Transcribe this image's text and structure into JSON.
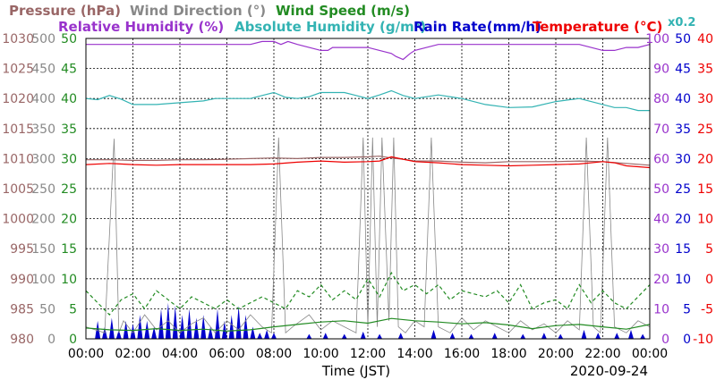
{
  "header": {
    "row1": [
      {
        "text": "Pressure (hPa)",
        "color": "#996666"
      },
      {
        "text": "Wind Direction (°)",
        "color": "#888888"
      },
      {
        "text": "Wind Speed (m/s)",
        "color": "#228B22"
      }
    ],
    "row2": [
      {
        "text": "Relative Humidity (%)",
        "color": "#9933CC"
      },
      {
        "text": "Absolute Humidity (g/m³)",
        "color": "#33B3B3"
      },
      {
        "text": "Rain Rate(mm/h)",
        "color": "#0000CC"
      },
      {
        "text": "Temperature (°C)",
        "color": "#EE0000"
      }
    ],
    "scale_note": "x0.2",
    "scale_note_color": "#33B3B3"
  },
  "footer": {
    "xlabel": "Time (JST)",
    "date": "2020-09-24"
  },
  "chart_data": {
    "type": "line",
    "grid": true,
    "x_ticks": [
      "00:00",
      "02:00",
      "04:00",
      "06:00",
      "08:00",
      "10:00",
      "12:00",
      "14:00",
      "16:00",
      "18:00",
      "20:00",
      "22:00",
      "00:00"
    ],
    "x_range_hours": [
      0,
      24
    ],
    "axes": {
      "pressure": {
        "color": "#996666",
        "side": "left",
        "ticks": [
          "980",
          "985",
          "990",
          "995",
          "1000",
          "1005",
          "1010",
          "1015",
          "1020",
          "1025",
          "1030"
        ],
        "range": [
          980,
          1030
        ]
      },
      "wind_dir": {
        "color": "#888888",
        "side": "left",
        "ticks": [
          "0",
          "50",
          "100",
          "150",
          "200",
          "250",
          "300",
          "350",
          "400",
          "450",
          "500"
        ],
        "range": [
          0,
          500
        ]
      },
      "wind_speed": {
        "color": "#228B22",
        "side": "left",
        "ticks": [
          "0",
          "5",
          "10",
          "15",
          "20",
          "25",
          "30",
          "35",
          "40",
          "45",
          "50"
        ],
        "range": [
          0,
          50
        ]
      },
      "humidity": {
        "color": "#9933CC",
        "side": "right",
        "ticks": [
          "0",
          "10",
          "20",
          "30",
          "40",
          "50",
          "60",
          "70",
          "80",
          "90",
          "100"
        ],
        "range": [
          0,
          100
        ]
      },
      "rain": {
        "color": "#0000CC",
        "side": "right",
        "ticks": [
          "0",
          "5",
          "10",
          "15",
          "20",
          "25",
          "30",
          "35",
          "40",
          "45",
          "50"
        ],
        "range": [
          0,
          50
        ]
      },
      "temperature": {
        "color": "#EE0000",
        "side": "right",
        "ticks": [
          "-10",
          "-5",
          "0",
          "5",
          "10",
          "15",
          "20",
          "25",
          "30",
          "35",
          "40"
        ],
        "range": [
          -10,
          40
        ]
      }
    },
    "series": [
      {
        "name": "Relative Humidity",
        "axis": "humidity",
        "color": "#9933CC",
        "style": "solid",
        "x": [
          0,
          2,
          3,
          4,
          5,
          6,
          7,
          7.5,
          8,
          8.3,
          8.6,
          9,
          9.5,
          10,
          10.3,
          10.5,
          11,
          11.5,
          12,
          12.5,
          13,
          13.2,
          13.5,
          13.8,
          14,
          14.5,
          15,
          16,
          17,
          18,
          19,
          20,
          21,
          21.5,
          22,
          22.5,
          23,
          23.5,
          24
        ],
        "y": [
          98,
          98,
          98,
          98,
          98,
          98,
          98,
          99,
          99,
          98,
          99,
          98,
          97,
          96,
          96,
          97,
          97,
          97,
          97,
          96,
          95,
          94,
          93,
          95,
          96,
          97,
          98,
          98,
          98,
          98,
          98,
          98,
          98,
          97,
          96,
          96,
          97,
          97,
          98
        ]
      },
      {
        "name": "Absolute Humidity (x0.2)",
        "axis": "wind_speed",
        "color": "#33B3B3",
        "style": "solid",
        "x": [
          0,
          0.5,
          1,
          1.5,
          2,
          3,
          4,
          5,
          5.5,
          6,
          7,
          7.5,
          8,
          8.5,
          9,
          9.5,
          10,
          10.5,
          11,
          11.5,
          12,
          12.5,
          13,
          13.5,
          14,
          14.5,
          15,
          16,
          17,
          18,
          19,
          20,
          21,
          21.5,
          22,
          22.5,
          23,
          23.5,
          24
        ],
        "y": [
          40,
          39.8,
          40.5,
          39.9,
          39,
          39,
          39.3,
          39.6,
          40,
          40,
          40,
          40.5,
          41,
          40.2,
          40,
          40.3,
          41,
          41,
          41,
          40.5,
          40,
          40.6,
          41.3,
          40.5,
          40,
          40.3,
          40.6,
          40,
          39,
          38.5,
          38.6,
          39.5,
          40,
          39.5,
          39,
          38.5,
          38.5,
          38,
          38
        ]
      },
      {
        "name": "Pressure",
        "axis": "pressure",
        "color": "#996666",
        "style": "solid",
        "x": [
          0,
          1,
          2,
          3,
          4,
          5,
          6,
          7,
          8,
          9,
          10,
          11,
          12,
          12.5,
          13,
          13.5,
          14,
          15,
          16,
          17,
          18,
          19,
          20,
          21,
          22,
          23,
          24
        ],
        "y": [
          1009.8,
          1009.8,
          1009.7,
          1009.7,
          1009.8,
          1009.8,
          1009.9,
          1010,
          1010.1,
          1010,
          1010.2,
          1010.2,
          1010.3,
          1010.4,
          1010.1,
          1009.9,
          1009.6,
          1009.6,
          1009.4,
          1009.3,
          1009.5,
          1009.5,
          1009.5,
          1009.6,
          1009.5,
          1009.2,
          1008.9
        ]
      },
      {
        "name": "Temperature",
        "axis": "temperature",
        "color": "#EE0000",
        "style": "solid",
        "x": [
          0,
          1,
          2,
          3,
          4,
          5,
          6,
          7,
          8,
          9,
          10,
          11,
          12,
          12.5,
          13,
          13.5,
          14,
          15,
          16,
          17,
          18,
          19,
          20,
          21,
          22,
          22.5,
          23,
          24
        ],
        "y": [
          19,
          19.2,
          19,
          18.9,
          19,
          19,
          19,
          19,
          19.1,
          19.4,
          19.6,
          19.4,
          19.5,
          19.6,
          20.3,
          19.9,
          19.5,
          19.3,
          19,
          18.9,
          18.8,
          18.9,
          19,
          19.1,
          19.5,
          19.3,
          18.8,
          18.5
        ]
      },
      {
        "name": "Wind Speed (avg)",
        "axis": "wind_speed",
        "color": "#228B22",
        "style": "solid",
        "x": [
          0,
          1,
          2,
          3,
          4,
          5,
          6,
          7,
          8,
          9,
          10,
          11,
          12,
          13,
          14,
          15,
          16,
          17,
          18,
          19,
          20,
          21,
          22,
          23,
          24
        ],
        "y": [
          1.8,
          1.5,
          1.4,
          1.7,
          1.4,
          1.6,
          1.3,
          1.5,
          2.0,
          2.4,
          2.8,
          3.0,
          2.6,
          3.4,
          3.0,
          2.8,
          2.5,
          2.7,
          2.3,
          1.7,
          2.2,
          2.4,
          2.0,
          1.6,
          2.4
        ]
      },
      {
        "name": "Wind Speed (gust)",
        "axis": "wind_speed",
        "color": "#228B22",
        "style": "dashed",
        "x": [
          0,
          0.5,
          1,
          1.5,
          2,
          2.5,
          3,
          3.5,
          4,
          4.5,
          5,
          5.5,
          6,
          6.5,
          7,
          7.5,
          8,
          8.5,
          9,
          9.5,
          10,
          10.5,
          11,
          11.5,
          12,
          12.5,
          13,
          13.5,
          14,
          14.5,
          15,
          15.5,
          16,
          16.5,
          17,
          17.5,
          18,
          18.5,
          19,
          19.5,
          20,
          20.5,
          21,
          21.5,
          22,
          22.5,
          23,
          23.5,
          24
        ],
        "y": [
          8,
          6,
          4,
          6.5,
          7.5,
          5,
          8,
          6.5,
          5,
          7,
          6,
          5,
          6.5,
          5,
          6,
          7,
          6,
          5,
          8,
          7,
          9,
          6.5,
          8,
          6.5,
          10,
          7,
          11,
          8,
          9,
          7.5,
          9,
          6.5,
          8,
          7.5,
          7,
          8,
          6,
          9,
          5,
          6,
          6.5,
          5,
          9,
          6,
          8,
          6,
          5,
          7,
          9
        ]
      },
      {
        "name": "Wind Direction",
        "axis": "wind_dir",
        "color": "#888888",
        "style": "thin",
        "x": [
          0,
          0.8,
          1.2,
          1.4,
          1.6,
          2,
          2.5,
          3,
          3.5,
          4,
          4.5,
          5,
          5.5,
          6,
          6.5,
          7,
          7.5,
          7.9,
          8.2,
          8.5,
          8.8,
          9.5,
          10,
          10.5,
          11,
          11.5,
          11.8,
          12,
          12.2,
          12.4,
          12.6,
          12.9,
          13.1,
          13.3,
          13.6,
          14,
          14.4,
          14.7,
          15,
          15.5,
          16,
          16.5,
          17,
          17.5,
          18,
          18.5,
          19,
          19.5,
          20,
          20.5,
          21,
          21.3,
          21.6,
          21.9,
          22.2,
          22.5,
          23,
          23.5,
          24
        ],
        "y": [
          20,
          10,
          333,
          10,
          30,
          10,
          40,
          15,
          30,
          10,
          25,
          35,
          10,
          30,
          15,
          40,
          20,
          10,
          335,
          10,
          20,
          40,
          15,
          30,
          20,
          10,
          335,
          20,
          335,
          20,
          335,
          30,
          335,
          20,
          10,
          30,
          20,
          335,
          20,
          10,
          35,
          15,
          30,
          20,
          10,
          30,
          15,
          25,
          10,
          30,
          15,
          335,
          20,
          10,
          335,
          20,
          10,
          30,
          20
        ]
      },
      {
        "name": "Rain Rate",
        "axis": "rain",
        "color": "#0000CC",
        "style": "fill",
        "x": [
          0.5,
          0.8,
          1.1,
          1.4,
          1.7,
          2.0,
          2.3,
          2.6,
          2.9,
          3.2,
          3.5,
          3.8,
          4.1,
          4.4,
          4.7,
          5.0,
          5.3,
          5.6,
          5.9,
          6.2,
          6.5,
          6.8,
          7.1,
          7.4,
          7.7,
          8.0,
          9.5,
          10.2,
          11.0,
          11.8,
          12.5,
          13.4,
          14.8,
          15.6,
          16.4,
          17.4,
          18.6,
          19.5,
          20.2,
          21.2,
          21.8,
          22.6,
          23.2,
          23.7
        ],
        "y": [
          3,
          2,
          3.5,
          1.5,
          3,
          2.5,
          4,
          3,
          2,
          5,
          6,
          5.5,
          4,
          5,
          3.5,
          4,
          2,
          5,
          3,
          4,
          5.5,
          4,
          2,
          1,
          1.5,
          1,
          0.8,
          1,
          0.8,
          1.2,
          0.8,
          1,
          1.5,
          1,
          0.8,
          1,
          0.8,
          1,
          0.8,
          1.5,
          1,
          1,
          1.5,
          0.8
        ]
      }
    ]
  }
}
